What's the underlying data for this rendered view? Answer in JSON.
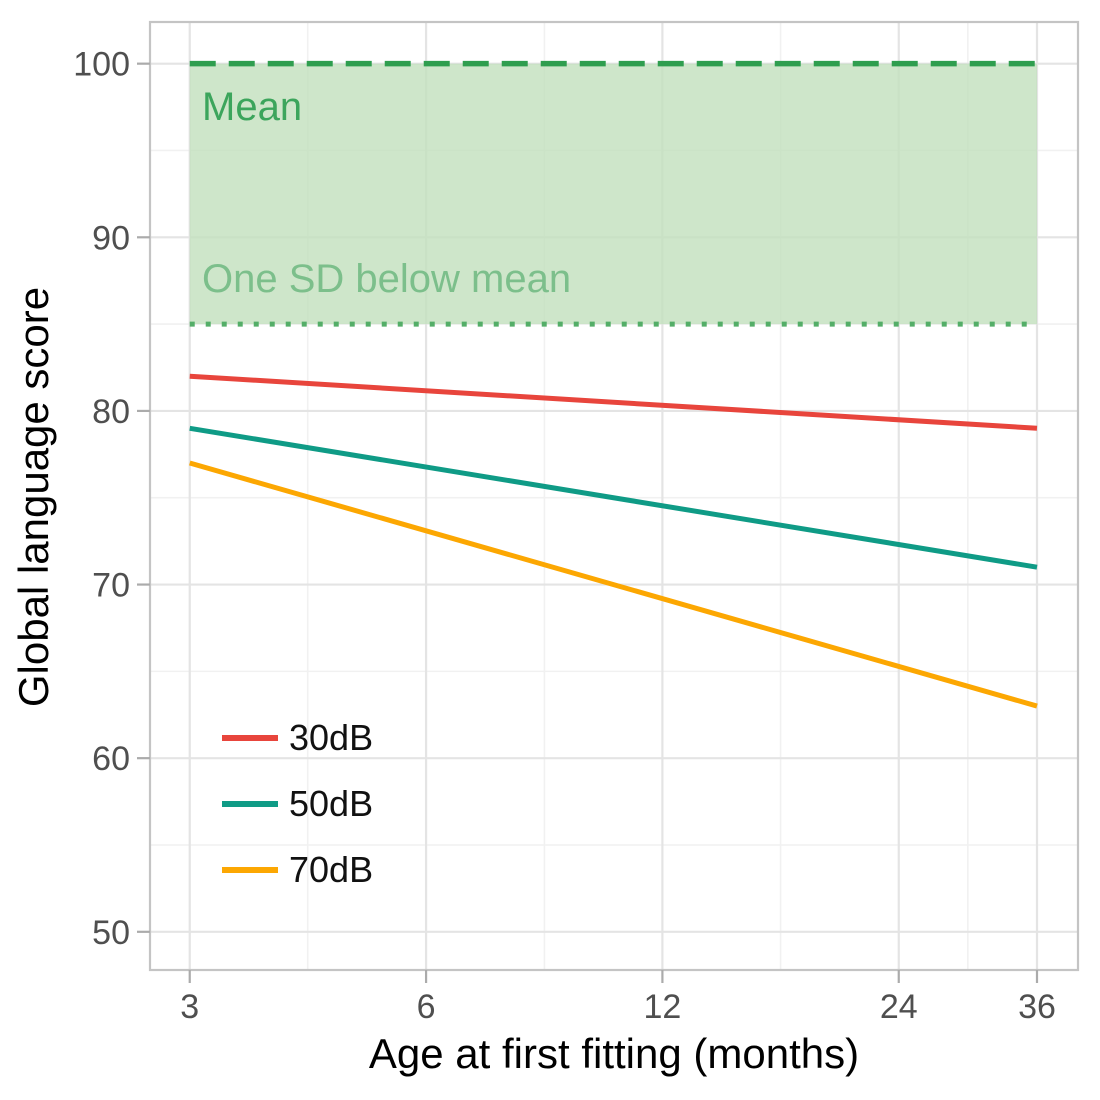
{
  "chart_data": {
    "type": "line",
    "title": "",
    "xlabel": "Age at first fitting (months)",
    "ylabel": "Global language score",
    "x_scale": "log2",
    "x_ticks": [
      3,
      6,
      12,
      24,
      36
    ],
    "x_minor_ticks": [
      4.24,
      8.49,
      16.97,
      29.39
    ],
    "x_domain": [
      2.67,
      40.6
    ],
    "y_ticks": [
      50,
      60,
      70,
      80,
      90,
      100
    ],
    "y_minor_ticks": [
      55,
      65,
      75,
      85,
      95
    ],
    "y_domain": [
      47.8,
      102.4
    ],
    "grid": "major+minor",
    "legend_position": "inside bottom-left",
    "reference_band": {
      "x0": 3,
      "x1": 36,
      "y0": 85,
      "y1": 100,
      "fill": "#c2e0bd",
      "opacity": 0.8,
      "top_line": {
        "y": 100,
        "style": "dashed",
        "color": "#2f9e4f",
        "label": "Mean",
        "label_color": "#3ca55c"
      },
      "bottom_line": {
        "y": 85,
        "style": "dotted",
        "color": "#54ae68",
        "label": "One SD below mean",
        "label_color": "#7cbf8b"
      }
    },
    "series": [
      {
        "name": "30dB",
        "color": "#e8453c",
        "x": [
          3,
          36
        ],
        "values": [
          82,
          79
        ]
      },
      {
        "name": "50dB",
        "color": "#0f9b86",
        "x": [
          3,
          36
        ],
        "values": [
          79,
          71
        ]
      },
      {
        "name": "70dB",
        "color": "#fca702",
        "x": [
          3,
          36
        ],
        "values": [
          77,
          63
        ]
      }
    ],
    "axis": {
      "tick_label_color": "#4f4f4f",
      "title_color": "#000000",
      "grid_major_color": "#e4e4e4",
      "grid_minor_color": "#f1f1f1",
      "panel_border_color": "#c4c4c4",
      "tick_mark_color": "#ababab"
    }
  }
}
